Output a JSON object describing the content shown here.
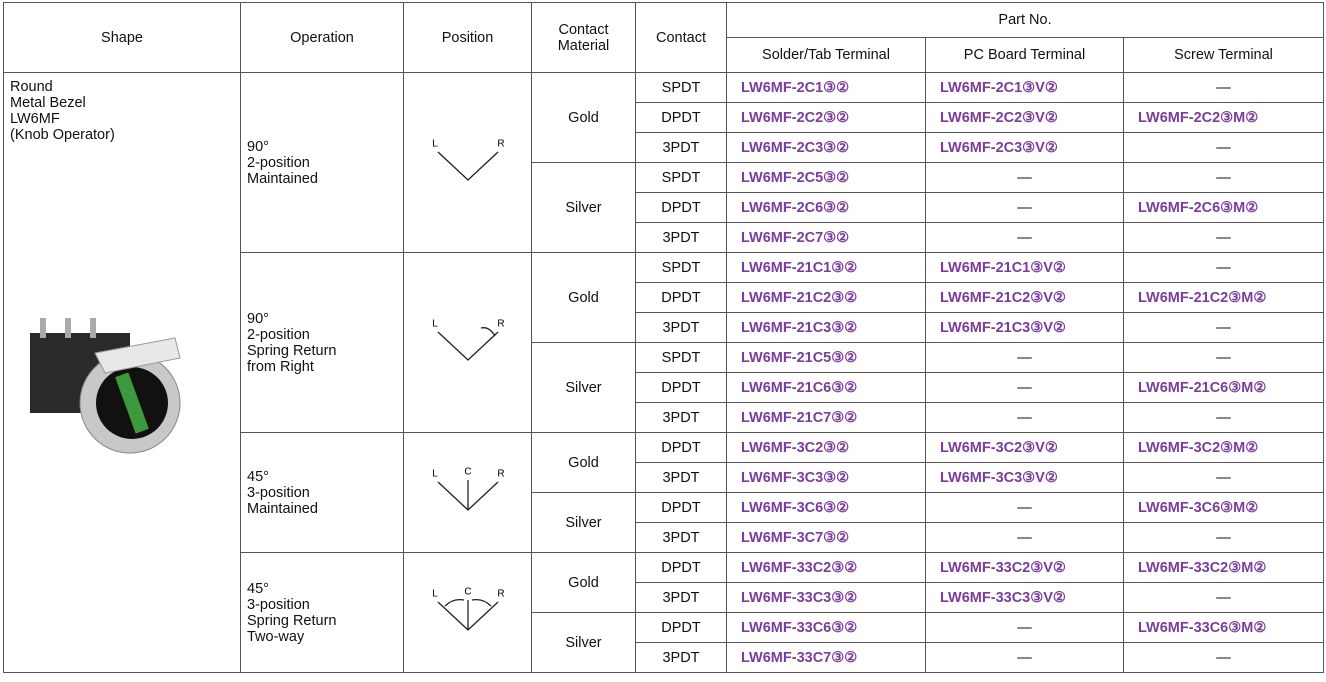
{
  "header": {
    "shape": "Shape",
    "operation": "Operation",
    "position": "Position",
    "contact_material": [
      "Contact",
      "Material"
    ],
    "contact": "Contact",
    "part_no": "Part No.",
    "terminals": [
      "Solder/Tab Terminal",
      "PC Board Terminal",
      "Screw Terminal"
    ]
  },
  "shape": [
    "Round",
    "Metal Bezel",
    "LW6MF",
    "(Knob Operator)"
  ],
  "operations": [
    {
      "label": [
        "90°",
        "2-position",
        "Maintained"
      ],
      "position": [
        "L",
        "R"
      ],
      "materials": [
        {
          "name": "Gold",
          "rows": [
            [
              "SPDT",
              "LW6MF-2C1③②",
              "LW6MF-2C1③V②",
              "—"
            ],
            [
              "DPDT",
              "LW6MF-2C2③②",
              "LW6MF-2C2③V②",
              "LW6MF-2C2③M②"
            ],
            [
              "3PDT",
              "LW6MF-2C3③②",
              "LW6MF-2C3③V②",
              "—"
            ]
          ]
        },
        {
          "name": "Silver",
          "rows": [
            [
              "SPDT",
              "LW6MF-2C5③②",
              "—",
              "—"
            ],
            [
              "DPDT",
              "LW6MF-2C6③②",
              "—",
              "LW6MF-2C6③M②"
            ],
            [
              "3PDT",
              "LW6MF-2C7③②",
              "—",
              "—"
            ]
          ]
        }
      ]
    },
    {
      "label": [
        "90°",
        "2-position",
        "Spring Return",
        "from Right"
      ],
      "position": [
        "L",
        "R"
      ],
      "materials": [
        {
          "name": "Gold",
          "rows": [
            [
              "SPDT",
              "LW6MF-21C1③②",
              "LW6MF-21C1③V②",
              "—"
            ],
            [
              "DPDT",
              "LW6MF-21C2③②",
              "LW6MF-21C2③V②",
              "LW6MF-21C2③M②"
            ],
            [
              "3PDT",
              "LW6MF-21C3③②",
              "LW6MF-21C3③V②",
              "—"
            ]
          ]
        },
        {
          "name": "Silver",
          "rows": [
            [
              "SPDT",
              "LW6MF-21C5③②",
              "—",
              "—"
            ],
            [
              "DPDT",
              "LW6MF-21C6③②",
              "—",
              "LW6MF-21C6③M②"
            ],
            [
              "3PDT",
              "LW6MF-21C7③②",
              "—",
              "—"
            ]
          ]
        }
      ]
    },
    {
      "label": [
        "45°",
        "3-position",
        "Maintained"
      ],
      "position": [
        "L",
        "C",
        "R"
      ],
      "materials": [
        {
          "name": "Gold",
          "rows": [
            [
              "DPDT",
              "LW6MF-3C2③②",
              "LW6MF-3C2③V②",
              "LW6MF-3C2③M②"
            ],
            [
              "3PDT",
              "LW6MF-3C3③②",
              "LW6MF-3C3③V②",
              "—"
            ]
          ]
        },
        {
          "name": "Silver",
          "rows": [
            [
              "DPDT",
              "LW6MF-3C6③②",
              "—",
              "LW6MF-3C6③M②"
            ],
            [
              "3PDT",
              "LW6MF-3C7③②",
              "—",
              "—"
            ]
          ]
        }
      ]
    },
    {
      "label": [
        "45°",
        "3-position",
        "Spring Return",
        "Two-way"
      ],
      "position": [
        "L",
        "C",
        "R"
      ],
      "materials": [
        {
          "name": "Gold",
          "rows": [
            [
              "DPDT",
              "LW6MF-33C2③②",
              "LW6MF-33C2③V②",
              "LW6MF-33C2③M②"
            ],
            [
              "3PDT",
              "LW6MF-33C3③②",
              "LW6MF-33C3③V②",
              "—"
            ]
          ]
        },
        {
          "name": "Silver",
          "rows": [
            [
              "DPDT",
              "LW6MF-33C6③②",
              "—",
              "LW6MF-33C6③M②"
            ],
            [
              "3PDT",
              "LW6MF-33C7③②",
              "—",
              "—"
            ]
          ]
        }
      ]
    }
  ]
}
